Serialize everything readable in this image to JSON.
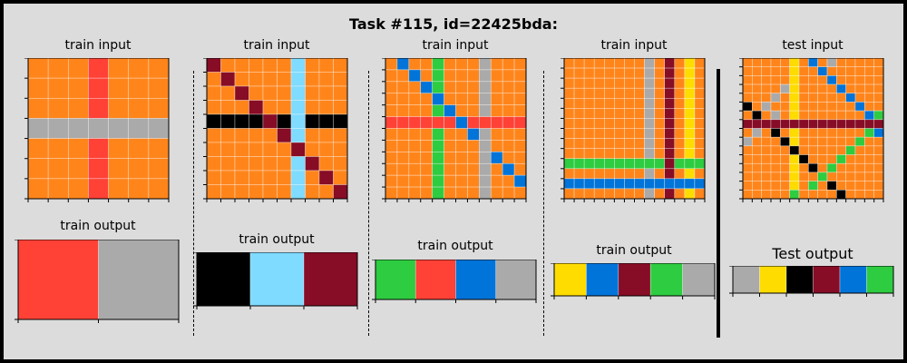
{
  "title": "Task #115, id=22425bda:",
  "colors": {
    "0": "#000000",
    "1": "#0074d9",
    "2": "#ff4136",
    "3": "#2ecc40",
    "4": "#ffdc00",
    "5": "#aaaaaa",
    "6": "#f012be",
    "7": "#ff851b",
    "8": "#7fdbff",
    "9": "#870c25"
  },
  "pairs": [
    {
      "input_label": "train input",
      "output_label": "train output",
      "input": [
        [
          7,
          7,
          7,
          2,
          7,
          7,
          7
        ],
        [
          7,
          7,
          7,
          2,
          7,
          7,
          7
        ],
        [
          7,
          7,
          7,
          2,
          7,
          7,
          7
        ],
        [
          5,
          5,
          5,
          5,
          5,
          5,
          5
        ],
        [
          7,
          7,
          7,
          2,
          7,
          7,
          7
        ],
        [
          7,
          7,
          7,
          2,
          7,
          7,
          7
        ],
        [
          7,
          7,
          7,
          2,
          7,
          7,
          7
        ]
      ],
      "output": [
        [
          2,
          5
        ]
      ]
    },
    {
      "input_label": "train input",
      "output_label": "train output",
      "input": [
        [
          9,
          7,
          7,
          7,
          7,
          7,
          8,
          7,
          7,
          7
        ],
        [
          7,
          9,
          7,
          7,
          7,
          7,
          8,
          7,
          7,
          7
        ],
        [
          7,
          7,
          9,
          7,
          7,
          7,
          8,
          7,
          7,
          7
        ],
        [
          7,
          7,
          7,
          9,
          7,
          7,
          8,
          7,
          7,
          7
        ],
        [
          0,
          0,
          0,
          0,
          9,
          0,
          8,
          0,
          0,
          0
        ],
        [
          7,
          7,
          7,
          7,
          7,
          9,
          8,
          7,
          7,
          7
        ],
        [
          7,
          7,
          7,
          7,
          7,
          7,
          9,
          7,
          7,
          7
        ],
        [
          7,
          7,
          7,
          7,
          7,
          7,
          8,
          9,
          7,
          7
        ],
        [
          7,
          7,
          7,
          7,
          7,
          7,
          8,
          7,
          9,
          7
        ],
        [
          7,
          7,
          7,
          7,
          7,
          7,
          8,
          7,
          7,
          9
        ]
      ],
      "output": [
        [
          0,
          8,
          9
        ]
      ]
    },
    {
      "input_label": "train input",
      "output_label": "train output",
      "input": [
        [
          7,
          1,
          7,
          7,
          3,
          7,
          7,
          7,
          5,
          7,
          7,
          7
        ],
        [
          7,
          7,
          1,
          7,
          3,
          7,
          7,
          7,
          5,
          7,
          7,
          7
        ],
        [
          7,
          7,
          7,
          1,
          3,
          7,
          7,
          7,
          5,
          7,
          7,
          7
        ],
        [
          7,
          7,
          7,
          7,
          1,
          7,
          7,
          7,
          5,
          7,
          7,
          7
        ],
        [
          7,
          7,
          7,
          7,
          3,
          1,
          7,
          7,
          5,
          7,
          7,
          7
        ],
        [
          2,
          2,
          2,
          2,
          2,
          2,
          1,
          2,
          2,
          2,
          2,
          2
        ],
        [
          7,
          7,
          7,
          7,
          3,
          7,
          7,
          1,
          5,
          7,
          7,
          7
        ],
        [
          7,
          7,
          7,
          7,
          3,
          7,
          7,
          7,
          5,
          7,
          7,
          7
        ],
        [
          7,
          7,
          7,
          7,
          3,
          7,
          7,
          7,
          5,
          1,
          7,
          7
        ],
        [
          7,
          7,
          7,
          7,
          3,
          7,
          7,
          7,
          5,
          7,
          1,
          7
        ],
        [
          7,
          7,
          7,
          7,
          3,
          7,
          7,
          7,
          5,
          7,
          7,
          1
        ],
        [
          7,
          7,
          7,
          7,
          3,
          7,
          7,
          7,
          5,
          7,
          7,
          7
        ]
      ],
      "output": [
        [
          3,
          2,
          1,
          5
        ]
      ]
    },
    {
      "input_label": "train input",
      "output_label": "train output",
      "input": [
        [
          7,
          7,
          7,
          7,
          7,
          7,
          7,
          7,
          5,
          7,
          9,
          7,
          4,
          7
        ],
        [
          7,
          7,
          7,
          7,
          7,
          7,
          7,
          7,
          5,
          7,
          9,
          7,
          4,
          7
        ],
        [
          7,
          7,
          7,
          7,
          7,
          7,
          7,
          7,
          5,
          7,
          9,
          7,
          4,
          7
        ],
        [
          7,
          7,
          7,
          7,
          7,
          7,
          7,
          7,
          5,
          7,
          9,
          7,
          4,
          7
        ],
        [
          7,
          7,
          7,
          7,
          7,
          7,
          7,
          7,
          5,
          7,
          9,
          7,
          4,
          7
        ],
        [
          7,
          7,
          7,
          7,
          7,
          7,
          7,
          7,
          5,
          7,
          9,
          7,
          4,
          7
        ],
        [
          7,
          7,
          7,
          7,
          7,
          7,
          7,
          7,
          5,
          7,
          9,
          7,
          4,
          7
        ],
        [
          7,
          7,
          7,
          7,
          7,
          7,
          7,
          7,
          5,
          7,
          9,
          7,
          4,
          7
        ],
        [
          7,
          7,
          7,
          7,
          7,
          7,
          7,
          7,
          5,
          7,
          9,
          7,
          4,
          7
        ],
        [
          7,
          7,
          7,
          7,
          7,
          7,
          7,
          7,
          5,
          7,
          9,
          7,
          4,
          7
        ],
        [
          3,
          3,
          3,
          3,
          3,
          3,
          3,
          3,
          3,
          3,
          9,
          3,
          3,
          3
        ],
        [
          7,
          7,
          7,
          7,
          7,
          7,
          7,
          7,
          5,
          7,
          9,
          7,
          4,
          7
        ],
        [
          1,
          1,
          1,
          1,
          1,
          1,
          1,
          1,
          1,
          1,
          1,
          1,
          1,
          1
        ],
        [
          7,
          7,
          7,
          7,
          7,
          7,
          7,
          7,
          5,
          7,
          9,
          7,
          4,
          7
        ]
      ],
      "output": [
        [
          4,
          1,
          9,
          3,
          5
        ]
      ]
    },
    {
      "input_label": "test input",
      "output_label": "Test output",
      "input": [
        [
          7,
          7,
          7,
          7,
          7,
          4,
          7,
          1,
          7,
          5,
          7,
          7,
          7,
          7,
          7
        ],
        [
          7,
          7,
          7,
          7,
          7,
          4,
          7,
          7,
          1,
          7,
          7,
          7,
          7,
          7,
          7
        ],
        [
          7,
          7,
          7,
          7,
          7,
          4,
          7,
          7,
          7,
          1,
          7,
          7,
          7,
          7,
          7
        ],
        [
          7,
          7,
          7,
          7,
          5,
          4,
          7,
          7,
          7,
          7,
          1,
          7,
          7,
          7,
          7
        ],
        [
          7,
          7,
          7,
          5,
          7,
          4,
          7,
          7,
          7,
          7,
          7,
          1,
          7,
          7,
          7
        ],
        [
          0,
          7,
          5,
          7,
          7,
          4,
          7,
          7,
          7,
          7,
          7,
          7,
          1,
          7,
          7
        ],
        [
          7,
          0,
          7,
          5,
          7,
          4,
          7,
          7,
          7,
          7,
          7,
          7,
          7,
          1,
          3
        ],
        [
          9,
          9,
          9,
          9,
          9,
          9,
          9,
          9,
          9,
          9,
          9,
          9,
          9,
          9,
          9
        ],
        [
          7,
          5,
          7,
          0,
          7,
          4,
          7,
          7,
          7,
          7,
          7,
          7,
          7,
          3,
          1
        ],
        [
          5,
          7,
          7,
          7,
          0,
          4,
          7,
          7,
          7,
          7,
          7,
          7,
          3,
          7,
          7
        ],
        [
          7,
          7,
          7,
          7,
          7,
          0,
          7,
          7,
          7,
          7,
          7,
          3,
          7,
          7,
          7
        ],
        [
          7,
          7,
          7,
          7,
          7,
          4,
          0,
          7,
          7,
          7,
          3,
          7,
          7,
          7,
          7
        ],
        [
          7,
          7,
          7,
          7,
          7,
          4,
          7,
          0,
          7,
          3,
          7,
          7,
          7,
          7,
          7
        ],
        [
          7,
          7,
          7,
          7,
          7,
          4,
          7,
          7,
          3,
          7,
          7,
          7,
          7,
          7,
          7
        ],
        [
          7,
          7,
          7,
          7,
          7,
          4,
          7,
          3,
          7,
          0,
          7,
          7,
          7,
          7,
          7
        ],
        [
          7,
          7,
          7,
          7,
          7,
          3,
          7,
          7,
          7,
          7,
          0,
          7,
          7,
          7,
          7
        ]
      ],
      "output": [
        [
          5,
          4,
          0,
          9,
          1,
          3
        ]
      ]
    }
  ]
}
